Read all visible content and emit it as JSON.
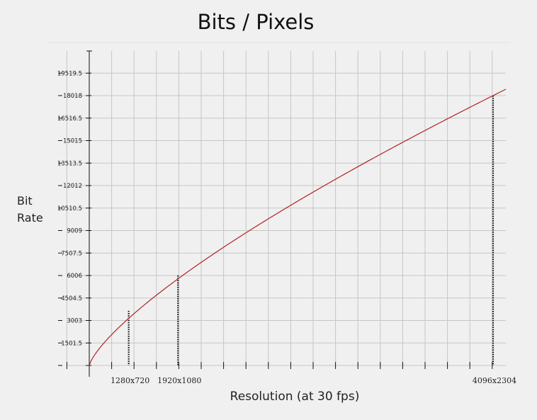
{
  "chart_data": {
    "type": "line",
    "title": "Bits / Pixels",
    "xlabel": "Resolution (at 30 fps)",
    "ylabel_lines": [
      "Bit",
      "Rate"
    ],
    "y_ticks": [
      "1501.5",
      "3003",
      "4504.5",
      "6006",
      "7507.5",
      "9009",
      "10510.5",
      "12012",
      "13513.5",
      "15015",
      "16516.5",
      "18018",
      "19519.5"
    ],
    "ylim": [
      0,
      20270
    ],
    "x_unit": "pixels",
    "xlim": [
      0,
      9437184
    ],
    "grid": true,
    "series": [
      {
        "color": "#b22222",
        "curve": "power",
        "exponent": 0.75,
        "x": [
          0,
          921600,
          2073600,
          9437184
        ],
        "y": [
          0,
          3650,
          6006,
          18018
        ]
      }
    ],
    "markers": [
      {
        "label": "1280x720",
        "x": 921600,
        "y": 3650
      },
      {
        "label": "1920x1080",
        "x": 2073600,
        "y": 6006
      },
      {
        "label": "4096x2304",
        "x": 9437184,
        "y": 18018
      }
    ]
  }
}
